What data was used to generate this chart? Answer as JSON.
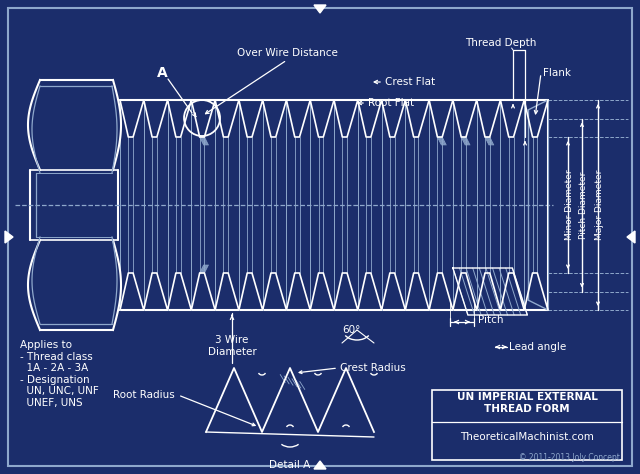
{
  "bg_color": "#1b2d6b",
  "line_color": "#ffffff",
  "line_color2": "#8fa8cc",
  "title": "UN IMPERIAL EXTERNAL\nTHREAD FORM",
  "website": "TheoreticalMachinist.com",
  "copyright": "© 2011-2013 Joly Concept",
  "labels": {
    "over_wire": "Over Wire Distance",
    "crest_flat": "Crest Flat",
    "root_flat": "Root Flat",
    "thread_depth": "Thread Depth",
    "flank": "Flank",
    "minor_dia": "Minor Diameter",
    "pitch_dia": "Pitch Diameter",
    "major_dia": "Major Diameter",
    "three_wire": "3 Wire\nDiameter",
    "sixty_deg": "60°",
    "pitch": "Pitch",
    "lead_angle": "Lead angle",
    "root_radius": "Root Radius",
    "crest_radius": "Crest Radius",
    "detail_a": "Detail A",
    "applies_to": "Applies to\n- Thread class\n  1A - 2A - 3A\n- Designation\n  UN, UNC, UNF\n  UNEF, UNS",
    "A_label": "A"
  }
}
